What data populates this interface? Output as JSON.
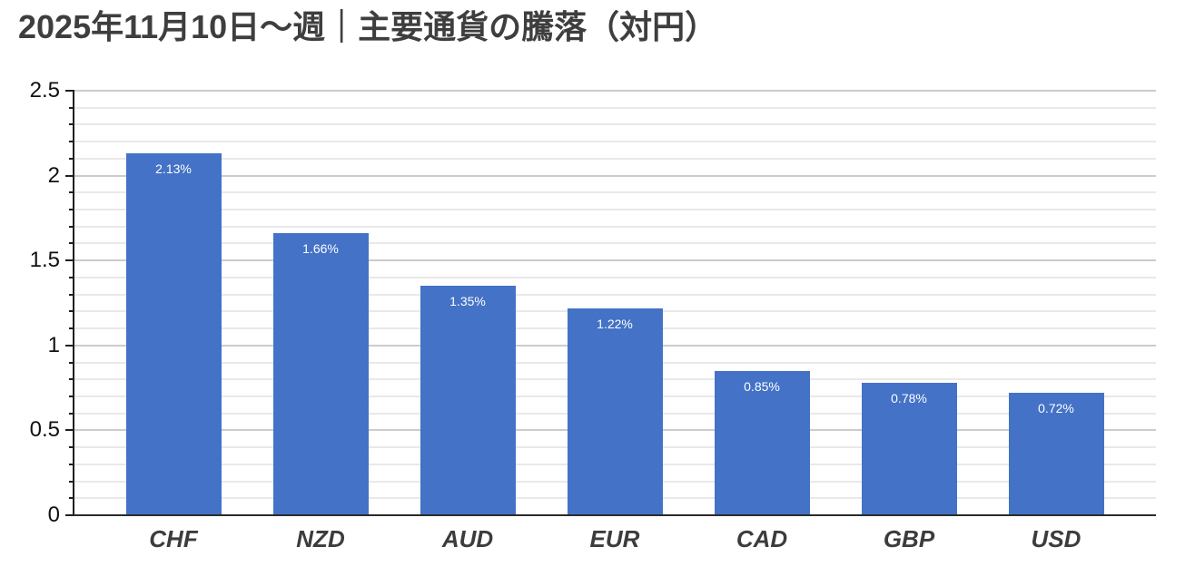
{
  "title": "2025年11月10日～週｜主要通貨の騰落（対円）",
  "chart_data": {
    "type": "bar",
    "title": "2025年11月10日～週｜主要通貨の騰落（対円）",
    "categories": [
      "CHF",
      "NZD",
      "AUD",
      "EUR",
      "CAD",
      "GBP",
      "USD"
    ],
    "values": [
      2.13,
      1.66,
      1.35,
      1.22,
      0.85,
      0.78,
      0.72
    ],
    "bar_labels": [
      "2.13%",
      "1.66%",
      "1.35%",
      "1.22%",
      "0.85%",
      "0.78%",
      "0.72%"
    ],
    "xlabel": "",
    "ylabel": "",
    "ylim": [
      0,
      2.5
    ],
    "yticks": [
      0,
      0.5,
      1,
      1.5,
      2,
      2.5
    ],
    "ytick_labels": [
      "0",
      "0.5",
      "1",
      "1.5",
      "2",
      "2.5"
    ],
    "minor_tick_step": 0.1,
    "grid": "horizontal gridlines, minor every 0.1 and major every 0.5",
    "legend": "none",
    "colors": {
      "bar": "#4472c7",
      "bar_label_text": "#ffffff",
      "title_text": "#3e3e3e",
      "category_label_text": "#3c3c3c",
      "ytick_label_text": "#111111",
      "major_gridline": "#cccccc",
      "minor_gridline": "#e9e9e9",
      "axis_line": "#1f1f1f"
    }
  }
}
